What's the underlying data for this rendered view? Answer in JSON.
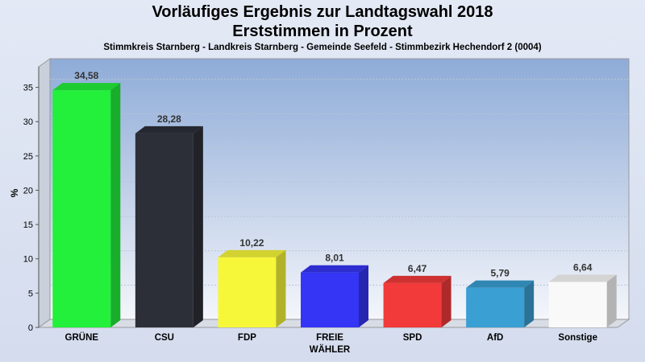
{
  "chart_data": {
    "type": "bar",
    "title": "Vorläufiges Ergebnis zur Landtagswahl 2018",
    "subtitle": "Erststimmen in Prozent",
    "caption": "Stimmkreis Starnberg - Landkreis Starnberg - Gemeinde Seefeld - Stimmbezirk Hechendorf 2 (0004)",
    "xlabel": "",
    "ylabel": "%",
    "ylim": [
      0,
      38
    ],
    "yticks": [
      0,
      5,
      10,
      15,
      20,
      25,
      30,
      35
    ],
    "grid": true,
    "categories": [
      [
        "GRÜNE"
      ],
      [
        "CSU"
      ],
      [
        "FDP"
      ],
      [
        "FREIE",
        "WÄHLER"
      ],
      [
        "SPD"
      ],
      [
        "AfD"
      ],
      [
        "Sonstige"
      ]
    ],
    "values": [
      34.58,
      28.28,
      10.22,
      8.01,
      6.47,
      5.79,
      6.64
    ],
    "value_labels": [
      "34,58",
      "28,28",
      "10,22",
      "8,01",
      "6,47",
      "5,79",
      "6,64"
    ],
    "colors": [
      "#22f03a",
      "#2c2f38",
      "#f7f73a",
      "#3535f5",
      "#f23a3a",
      "#3a9fd2",
      "#f9f9f9"
    ]
  }
}
